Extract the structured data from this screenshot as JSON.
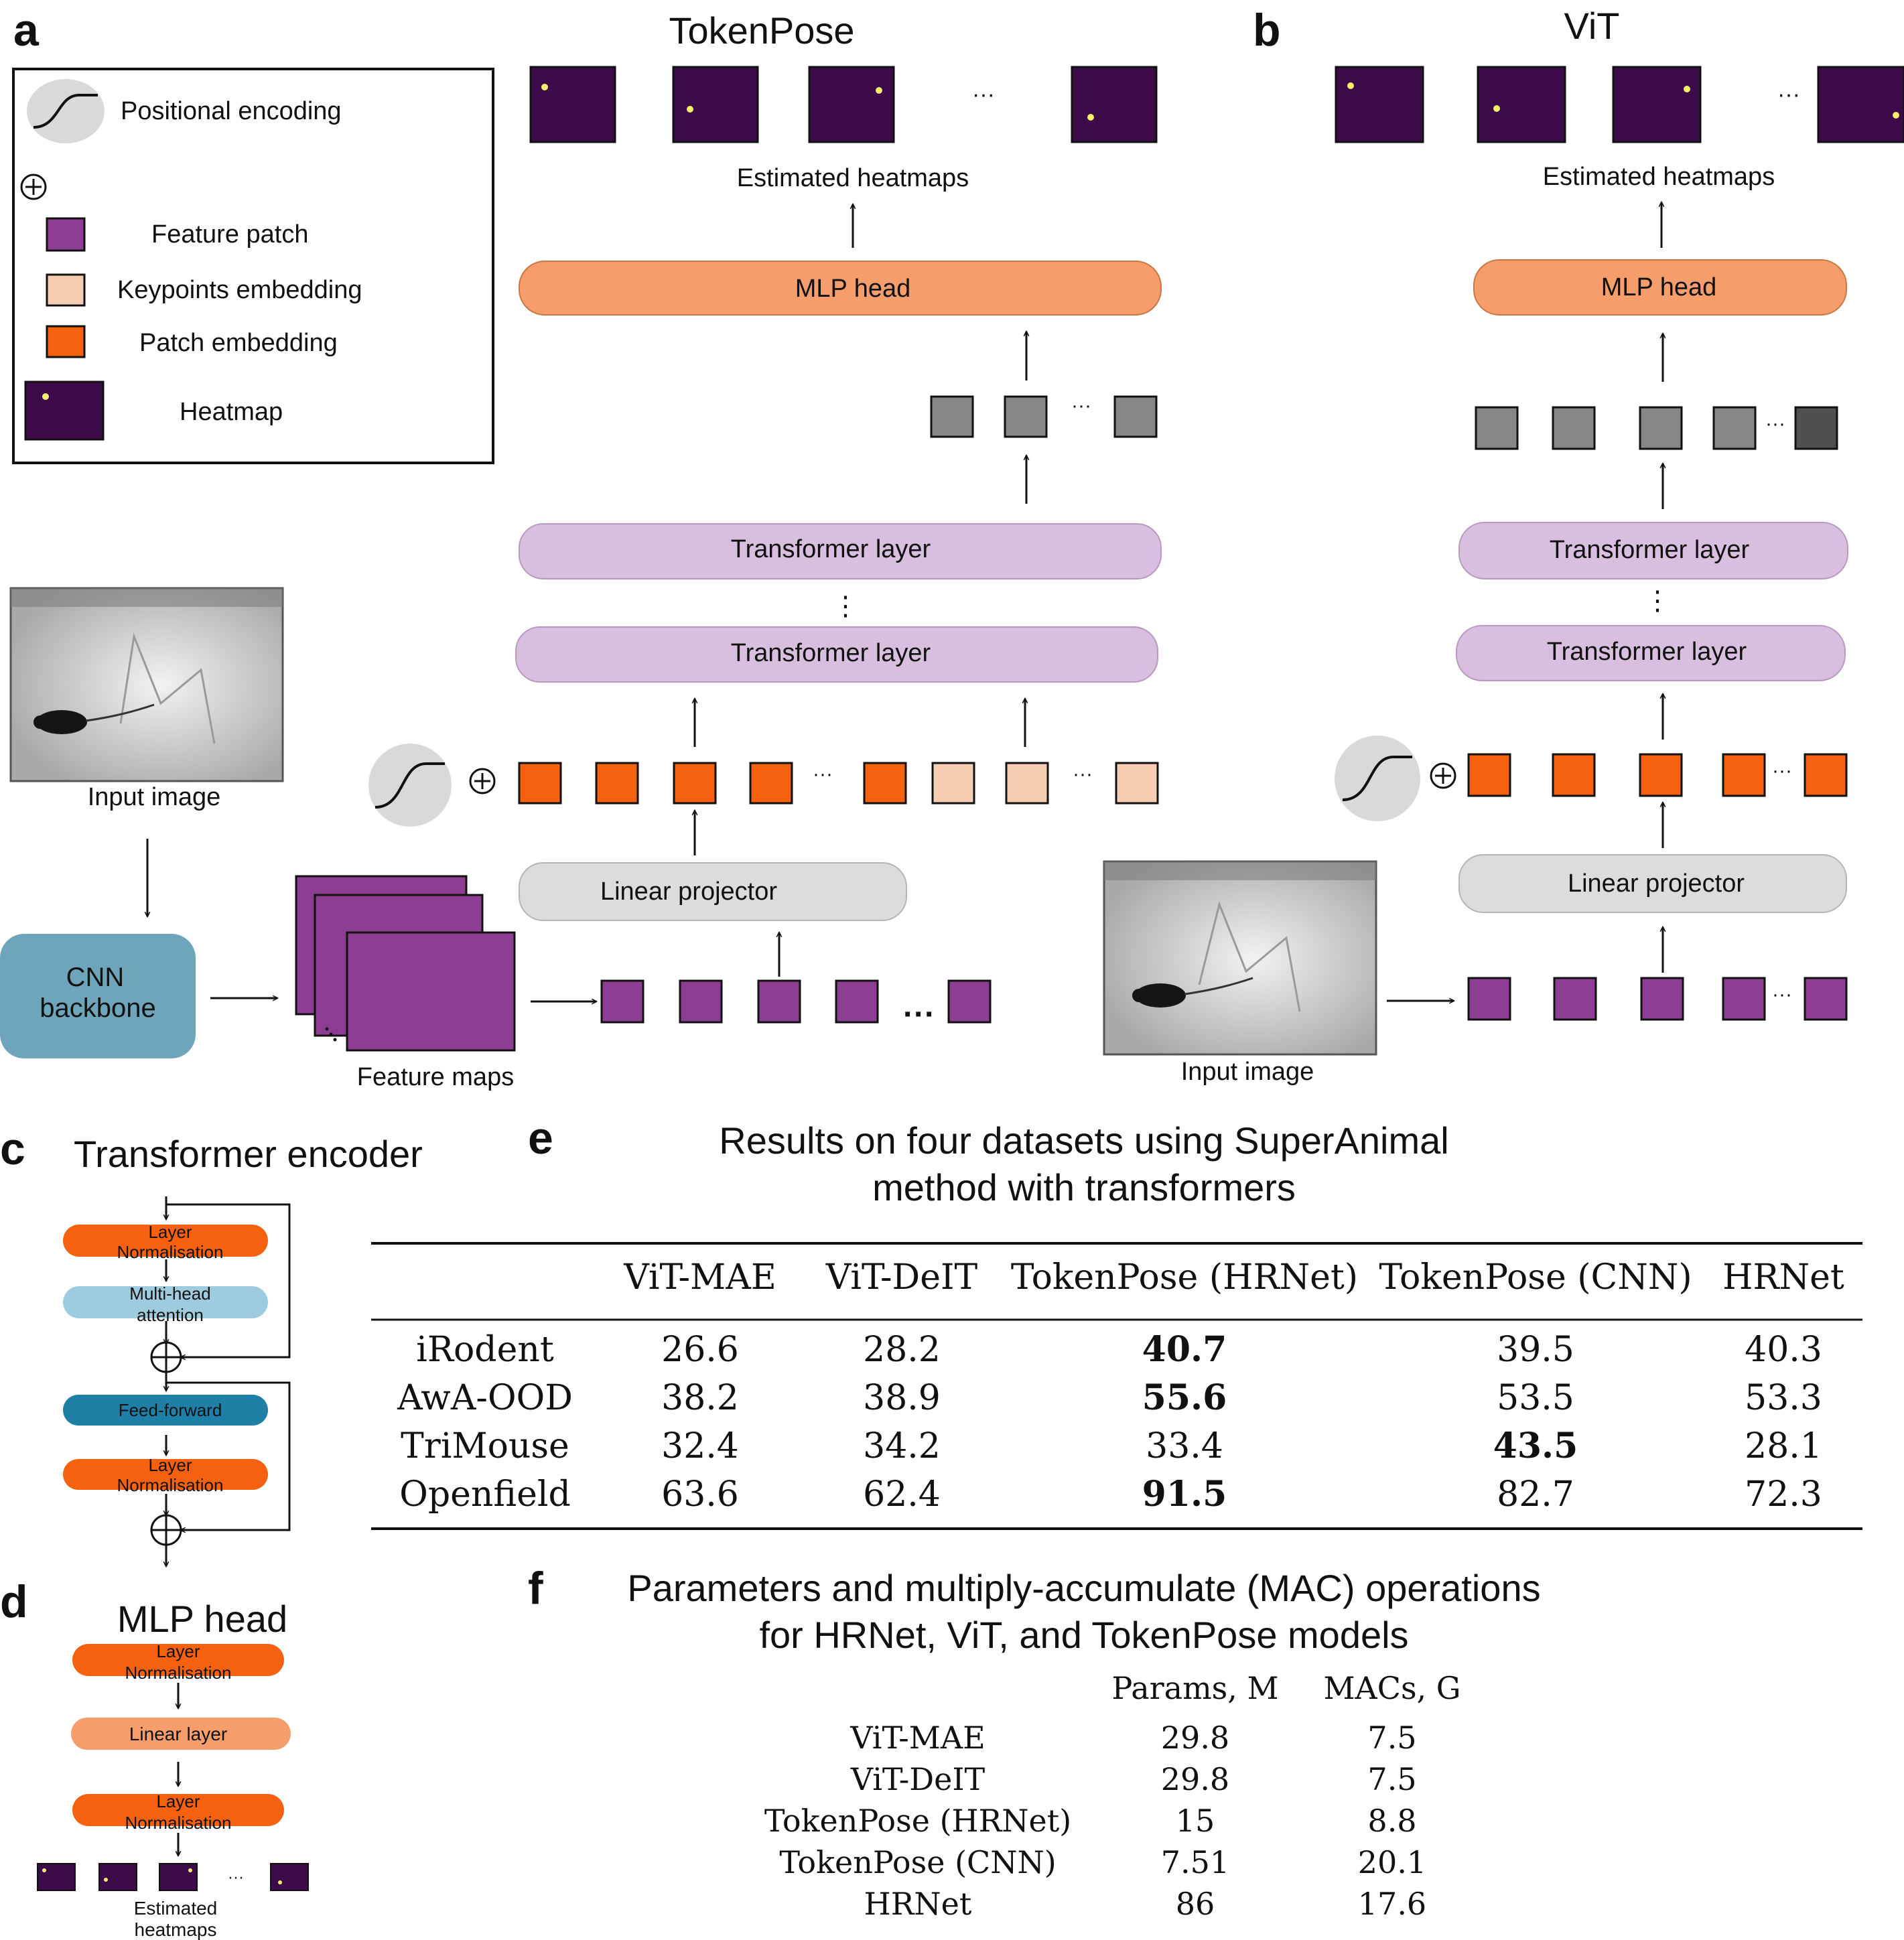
{
  "panel_letters": {
    "a": "a",
    "b": "b",
    "c": "c",
    "d": "d",
    "e": "e",
    "f": "f"
  },
  "colors": {
    "orange": "#f5610f",
    "light_orange": "#f59e6b",
    "peach": "#f7cdb2",
    "purple": "#8b3e91",
    "lavender": "#d9bfdf",
    "light_grey": "#dcdcdc",
    "grey_token": "#868686",
    "dark_token": "#4f4f4f",
    "heatmap": "#3d0a4a",
    "heatmap_dot": "#f6f06a",
    "cnn": "#6ea5bb",
    "mha": "#9ecbdd",
    "ff": "#1e80a6"
  },
  "legend": {
    "positional": "Positional encoding",
    "feature_patch": "Feature patch",
    "keypoints": "Keypoints embedding",
    "patch_embedding": "Patch embedding",
    "heatmap": "Heatmap"
  },
  "panel_a": {
    "title": "TokenPose",
    "estimated": "Estimated heatmaps",
    "mlp": "MLP head",
    "transformer": "Transformer layer",
    "linear": "Linear projector",
    "input": "Input image",
    "cnn_line1": "CNN",
    "cnn_line2": "backbone",
    "feature_maps": "Feature maps",
    "ellipsis": "···",
    "vdots": "⋮"
  },
  "panel_b": {
    "title": "ViT",
    "estimated": "Estimated heatmaps",
    "mlp": "MLP head",
    "transformer": "Transformer layer",
    "linear": "Linear projector",
    "input": "Input image"
  },
  "panel_c": {
    "title": "Transformer encoder",
    "ln_line1": "Layer",
    "ln_line2": "Normalisation",
    "mha_line1": "Multi-head",
    "mha_line2": "attention",
    "ff": "Feed-forward"
  },
  "panel_d": {
    "title": "MLP head",
    "ln_line1": "Layer",
    "ln_line2": "Normalisation",
    "linear": "Linear layer",
    "est_line1": "Estimated",
    "est_line2": "heatmaps"
  },
  "table_e": {
    "title_line1": "Results on four datasets using SuperAnimal",
    "title_line2": "method with transformers",
    "headers": [
      "",
      "ViT-MAE",
      "ViT-DeIT",
      "TokenPose (HRNet)",
      "TokenPose (CNN)",
      "HRNet"
    ],
    "rows": [
      {
        "name": "iRodent",
        "values": [
          "26.6",
          "28.2",
          "40.7",
          "39.5",
          "40.3"
        ],
        "bold": 2
      },
      {
        "name": "AwA-OOD",
        "values": [
          "38.2",
          "38.9",
          "55.6",
          "53.5",
          "53.3"
        ],
        "bold": 2
      },
      {
        "name": "TriMouse",
        "values": [
          "32.4",
          "34.2",
          "33.4",
          "43.5",
          "28.1"
        ],
        "bold": 3
      },
      {
        "name": "Openfield",
        "values": [
          "63.6",
          "62.4",
          "91.5",
          "82.7",
          "72.3"
        ],
        "bold": 2
      }
    ]
  },
  "table_f": {
    "title_line1": "Parameters and multiply-accumulate (MAC) operations",
    "title_line2": "for HRNet, ViT, and TokenPose models",
    "headers": [
      "Params, M",
      "MACs, G"
    ],
    "rows": [
      {
        "name": "ViT-MAE",
        "values": [
          "29.8",
          "7.5"
        ]
      },
      {
        "name": "ViT-DeIT",
        "values": [
          "29.8",
          "7.5"
        ]
      },
      {
        "name": "TokenPose (HRNet)",
        "values": [
          "15",
          "8.8"
        ]
      },
      {
        "name": "TokenPose (CNN)",
        "values": [
          "7.51",
          "20.1"
        ]
      },
      {
        "name": "HRNet",
        "values": [
          "86",
          "17.6"
        ]
      }
    ]
  }
}
